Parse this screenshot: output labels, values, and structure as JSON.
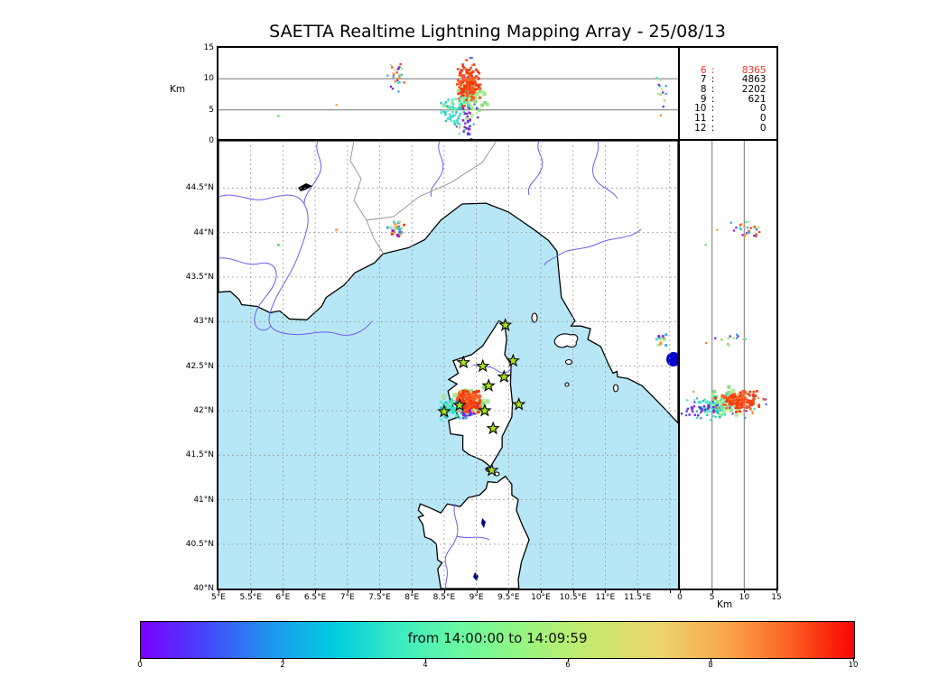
{
  "title": "SAETTA Realtime Lightning Mapping Array - 25/08/13",
  "top_panel": {
    "ylabel": "Km",
    "yticks": [
      "15",
      "10",
      "5",
      "0"
    ]
  },
  "stats_panel": {
    "highlight_color": "#ff3228",
    "rows": [
      {
        "source": "6",
        "count": "8365",
        "highlight": true
      },
      {
        "source": "7",
        "count": "4863",
        "highlight": false
      },
      {
        "source": "8",
        "count": "2202",
        "highlight": false
      },
      {
        "source": "9",
        "count": "621",
        "highlight": false
      },
      {
        "source": "10",
        "count": "0",
        "highlight": false
      },
      {
        "source": "11",
        "count": "0",
        "highlight": false
      },
      {
        "source": "12",
        "count": "0",
        "highlight": false
      }
    ]
  },
  "map_panel": {
    "lat_ticks": [
      "44.5°N",
      "44°N",
      "43.5°N",
      "43°N",
      "42.5°N",
      "42°N",
      "41.5°N",
      "41°N",
      "40.5°N",
      "40°N"
    ],
    "lon_ticks": [
      "5°E",
      "5.5°E",
      "6°E",
      "6.5°E",
      "7°E",
      "7.5°E",
      "8°E",
      "8.5°E",
      "9°E",
      "9.5°E",
      "10°E",
      "10.5°E",
      "11°E",
      "11.5°E"
    ]
  },
  "right_panel": {
    "xticks": [
      "0",
      "5",
      "10",
      "15"
    ],
    "xlabel": "Km"
  },
  "colorbar": {
    "label": "from 14:00:00 to 14:09:59",
    "ticks": [
      "0",
      "2",
      "4",
      "6",
      "8",
      "10"
    ],
    "gradient": [
      "#7a00ff",
      "#4446fb",
      "#1e96ee",
      "#00cede",
      "#3cecc0",
      "#6cfa9e",
      "#9cf47e",
      "#c8e86c",
      "#ecd46e",
      "#f8a84c",
      "#fb6224",
      "#f80400"
    ]
  },
  "chart_data": {
    "type": "scatter",
    "title": "SAETTA Realtime Lightning Mapping Array - 25/08/13",
    "time_window": "from 14:00:00 to 14:09:59",
    "color_scale": {
      "range_minutes": [
        0,
        10
      ],
      "mapping": "violet (start) to red (end of 10-min window)"
    },
    "axes": {
      "map_lon_range_degE": [
        5,
        12.13
      ],
      "map_lat_range_degN": [
        40,
        45.03
      ],
      "altitude_km_range": [
        0,
        15
      ]
    },
    "source_counts": [
      {
        "stations": 6,
        "sources": 8365
      },
      {
        "stations": 7,
        "sources": 4863
      },
      {
        "stations": 8,
        "sources": 2202
      },
      {
        "stations": 9,
        "sources": 621
      },
      {
        "stations": 10,
        "sources": 0
      },
      {
        "stations": 11,
        "sources": 0
      },
      {
        "stations": 12,
        "sources": 0
      }
    ],
    "sensors_lonlat": [
      [
        9.45,
        42.96
      ],
      [
        8.8,
        42.54
      ],
      [
        9.1,
        42.5
      ],
      [
        9.57,
        42.56
      ],
      [
        9.43,
        42.38
      ],
      [
        9.19,
        42.28
      ],
      [
        9.66,
        42.07
      ],
      [
        8.74,
        42.06
      ],
      [
        9.13,
        42.0
      ],
      [
        8.5,
        41.99
      ],
      [
        9.26,
        41.8
      ],
      [
        9.24,
        41.33
      ]
    ],
    "clusters": [
      {
        "name": "corsica-storm-halo",
        "count": 60,
        "lon": [
          8.84,
          0.14
        ],
        "lat": [
          42.1,
          0.07
        ],
        "alt": [
          7.0,
          1.4
        ],
        "size": 5,
        "colors": [
          "#a6e88e",
          "#b6f09e",
          "#8ee07e"
        ]
      },
      {
        "name": "corsica-storm-cyan",
        "count": 70,
        "lon": [
          8.66,
          0.11
        ],
        "lat": [
          42.03,
          0.055
        ],
        "alt": [
          5.2,
          1.4
        ],
        "size": 3,
        "colors": [
          "#38dcc8",
          "#50e8d2",
          "#22c4b4"
        ]
      },
      {
        "name": "corsica-storm-sparse",
        "count": 40,
        "lon": [
          8.86,
          0.1
        ],
        "lat": [
          42.07,
          0.08
        ],
        "alt_uniform": [
          0.3,
          14.2
        ],
        "size": 2.6,
        "colors": [
          "#3a58f8",
          "#7a1fe0",
          "#28a8f0",
          "#38dcc8",
          "#ff8c28",
          "#a6e88e"
        ]
      },
      {
        "name": "corsica-storm-purple",
        "count": 24,
        "lon": [
          8.88,
          0.055
        ],
        "lat": [
          42.01,
          0.035
        ],
        "alt": [
          2.8,
          1.4
        ],
        "size": 3,
        "colors": [
          "#7a1fe0",
          "#5a35f0",
          "#9028c8"
        ]
      },
      {
        "name": "corsica-storm-core",
        "count": 150,
        "lon": [
          8.88,
          0.085
        ],
        "lat": [
          42.12,
          0.05
        ],
        "alt": [
          9.2,
          1.3
        ],
        "size": 3.4,
        "colors": [
          "#f63b10",
          "#fb4f1e",
          "#ea3a0a",
          "#ff6428"
        ]
      },
      {
        "name": "alps-border-cells",
        "count": 30,
        "lon": [
          7.76,
          0.055
        ],
        "lat": [
          44.04,
          0.055
        ],
        "alt": [
          10.5,
          1.3
        ],
        "size": 2.8,
        "colors": [
          "#28a8f0",
          "#3a58f8",
          "#7a1fe0",
          "#ff8c28",
          "#38dcc8",
          "#f63b10",
          "#a6e88e"
        ]
      },
      {
        "name": "tuscany-small-cell",
        "count": 14,
        "lon": [
          11.88,
          0.04
        ],
        "lat": [
          42.79,
          0.045
        ],
        "alt": [
          8.3,
          1.3
        ],
        "size": 2.8,
        "colors": [
          "#ff8c28",
          "#38dcc8",
          "#7a1fe0",
          "#a6e88e",
          "#28a8f0"
        ]
      }
    ],
    "stray_points": [
      {
        "lon": 6.83,
        "lat": 44.03,
        "alt": 5.8,
        "color": "#f8a84c"
      },
      {
        "lon": 5.93,
        "lat": 43.86,
        "alt": 4.0,
        "color": "#70e070"
      },
      {
        "lon": 11.86,
        "lat": 42.76,
        "alt": 4.1,
        "color": "#ff8c28"
      }
    ],
    "map_colors": {
      "sea": "#b7e7f6",
      "land": "#ffffff",
      "coast": "#000000",
      "river": "#6a5df0",
      "admin_border": "#909090",
      "grid": "#999999",
      "lake_dark": "#0000cc",
      "sensor_star": "#a8e410"
    }
  }
}
